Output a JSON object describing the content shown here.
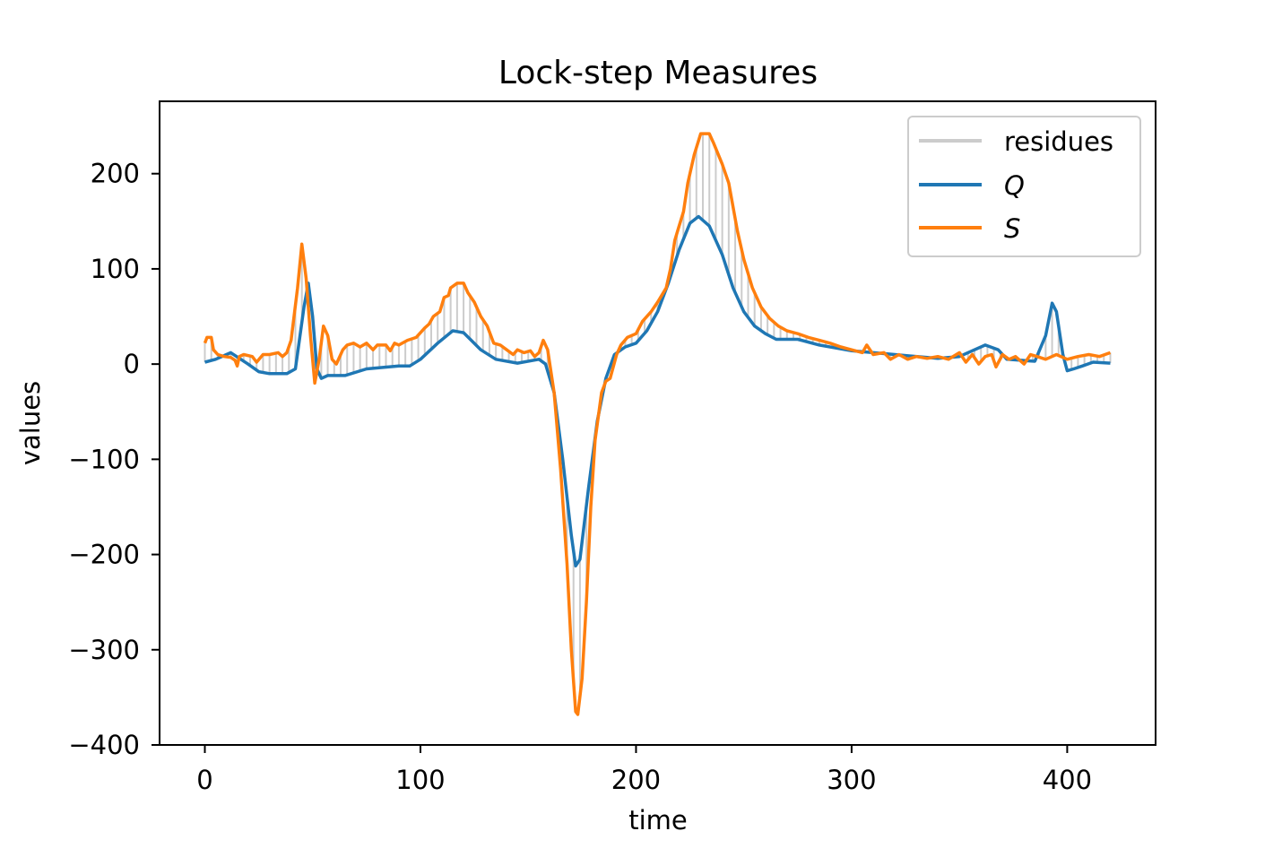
{
  "chart_data": {
    "type": "line",
    "title": "Lock-step Measures",
    "xlabel": "time",
    "ylabel": "values",
    "xlim": [
      -21,
      441
    ],
    "ylim": [
      -400,
      276
    ],
    "xticks": [
      0,
      100,
      200,
      300,
      400
    ],
    "xtick_labels": [
      "0",
      "100",
      "200",
      "300",
      "400"
    ],
    "yticks": [
      200,
      100,
      0,
      -100,
      -200,
      -300,
      -400
    ],
    "ytick_labels": [
      "200",
      "100",
      "0",
      "−100",
      "−200",
      "−300",
      "−400"
    ],
    "grid": false,
    "legend_position": "top-right",
    "residue_step": 3,
    "colors": {
      "residues": "#cccccc",
      "Q": "#1f77b4",
      "S": "#ff7f0e"
    },
    "series": [
      {
        "name": "Q",
        "label": "Q",
        "x": [
          0,
          5,
          12,
          20,
          25,
          30,
          38,
          42,
          46,
          48,
          50,
          52,
          54,
          57,
          65,
          75,
          90,
          95,
          100,
          108,
          115,
          120,
          128,
          135,
          145,
          155,
          158,
          162,
          166,
          170,
          172,
          174,
          178,
          182,
          186,
          190,
          195,
          200,
          205,
          210,
          215,
          220,
          225,
          229,
          234,
          240,
          245,
          250,
          255,
          260,
          265,
          275,
          285,
          300,
          320,
          340,
          350,
          355,
          362,
          368,
          372,
          385,
          390,
          393,
          395,
          398,
          400,
          403,
          407,
          412,
          420
        ],
        "y": [
          2,
          5,
          12,
          0,
          -8,
          -10,
          -10,
          -5,
          60,
          85,
          50,
          -5,
          -15,
          -12,
          -12,
          -5,
          -2,
          -2,
          5,
          22,
          35,
          33,
          15,
          5,
          1,
          5,
          0,
          -30,
          -100,
          -180,
          -212,
          -205,
          -130,
          -60,
          -15,
          10,
          18,
          22,
          35,
          55,
          85,
          120,
          148,
          155,
          145,
          115,
          80,
          55,
          40,
          32,
          26,
          26,
          20,
          14,
          10,
          6,
          8,
          13,
          20,
          15,
          5,
          3,
          30,
          64,
          55,
          10,
          -7,
          -5,
          -2,
          2,
          1
        ]
      },
      {
        "name": "S",
        "label": "S",
        "x": [
          0,
          1,
          3,
          4,
          6,
          9,
          12,
          14,
          15,
          16,
          18,
          22,
          24,
          27,
          30,
          34,
          36,
          38,
          40,
          43,
          45,
          47,
          49,
          51,
          53,
          55,
          57,
          59,
          61,
          64,
          66,
          69,
          72,
          75,
          78,
          80,
          84,
          86,
          88,
          90,
          94,
          98,
          102,
          104,
          106,
          109,
          111,
          113,
          114,
          117,
          120,
          122,
          125,
          128,
          131,
          134,
          137,
          140,
          143,
          145,
          148,
          151,
          153,
          155,
          157,
          159,
          162,
          165,
          168,
          170,
          172,
          173,
          175,
          177,
          179,
          181,
          184,
          186,
          188,
          191,
          193,
          196,
          200,
          203,
          207,
          210,
          214,
          216,
          218,
          220,
          222,
          224,
          227,
          230,
          234,
          236,
          240,
          243,
          247,
          250,
          254,
          258,
          262,
          266,
          270,
          275,
          280,
          285,
          290,
          295,
          300,
          305,
          307,
          310,
          315,
          318,
          322,
          326,
          330,
          335,
          340,
          345,
          350,
          353,
          356,
          359,
          362,
          365,
          367,
          370,
          373,
          376,
          380,
          383,
          386,
          390,
          395,
          400,
          405,
          410,
          415,
          420
        ],
        "y": [
          22,
          28,
          28,
          15,
          10,
          8,
          7,
          4,
          -2,
          8,
          10,
          8,
          2,
          10,
          10,
          12,
          8,
          12,
          25,
          80,
          126,
          90,
          30,
          -20,
          5,
          40,
          30,
          5,
          0,
          15,
          20,
          22,
          18,
          22,
          15,
          20,
          20,
          14,
          22,
          20,
          25,
          28,
          38,
          42,
          50,
          55,
          70,
          72,
          80,
          85,
          85,
          75,
          65,
          50,
          40,
          22,
          20,
          15,
          10,
          15,
          12,
          14,
          8,
          12,
          25,
          15,
          -30,
          -110,
          -210,
          -300,
          -365,
          -368,
          -330,
          -250,
          -150,
          -80,
          -30,
          -18,
          -15,
          10,
          20,
          28,
          32,
          45,
          55,
          65,
          80,
          100,
          130,
          145,
          160,
          190,
          220,
          242,
          242,
          232,
          210,
          190,
          140,
          110,
          80,
          60,
          48,
          40,
          35,
          32,
          28,
          25,
          22,
          18,
          15,
          12,
          20,
          10,
          12,
          5,
          10,
          5,
          8,
          6,
          8,
          5,
          12,
          2,
          10,
          0,
          8,
          10,
          -3,
          10,
          5,
          8,
          0,
          10,
          8,
          5,
          10,
          5,
          8,
          10,
          8,
          12
        ]
      }
    ],
    "legend": [
      "residues",
      "Q",
      "S"
    ]
  }
}
